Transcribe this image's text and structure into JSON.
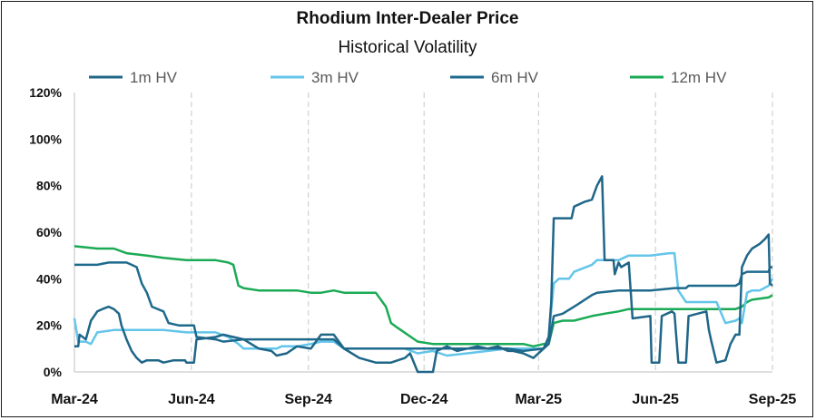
{
  "chart_data": {
    "type": "line",
    "title": "Rhodium Inter-Dealer Price",
    "subtitle": "Historical Volatility",
    "x_ticks": [
      "Mar-24",
      "Jun-24",
      "Sep-24",
      "Dec-24",
      "Mar-25",
      "Jun-25",
      "Sep-25"
    ],
    "x_range": [
      "2024-03-01",
      "2025-09-01"
    ],
    "y_ticks": [
      "0%",
      "20%",
      "40%",
      "60%",
      "80%",
      "100%",
      "120%"
    ],
    "ylim": [
      0,
      120
    ],
    "grid": "dashed vertical at each x tick",
    "legend_position": "top",
    "series": [
      {
        "name": "1m HV",
        "color": "#1F6688",
        "points": [
          [
            "2024-03-01",
            11
          ],
          [
            "2024-03-04",
            11
          ],
          [
            "2024-03-05",
            16
          ],
          [
            "2024-03-10",
            14
          ],
          [
            "2024-03-14",
            22
          ],
          [
            "2024-03-19",
            26
          ],
          [
            "2024-03-23",
            27
          ],
          [
            "2024-03-28",
            28
          ],
          [
            "2024-04-01",
            27
          ],
          [
            "2024-04-05",
            25
          ],
          [
            "2024-04-07",
            20
          ],
          [
            "2024-04-11",
            14
          ],
          [
            "2024-04-15",
            9
          ],
          [
            "2024-04-19",
            6
          ],
          [
            "2024-04-23",
            4
          ],
          [
            "2024-04-27",
            5
          ],
          [
            "2024-05-06",
            5
          ],
          [
            "2024-05-10",
            4
          ],
          [
            "2024-05-18",
            5
          ],
          [
            "2024-05-27",
            5
          ],
          [
            "2024-05-28",
            4
          ],
          [
            "2024-06-03",
            4
          ],
          [
            "2024-06-05",
            14
          ],
          [
            "2024-06-20",
            15
          ],
          [
            "2024-06-26",
            16
          ],
          [
            "2024-07-04",
            15
          ],
          [
            "2024-07-12",
            14
          ],
          [
            "2024-07-24",
            10
          ],
          [
            "2024-08-03",
            9
          ],
          [
            "2024-08-07",
            7
          ],
          [
            "2024-08-15",
            8
          ],
          [
            "2024-08-23",
            11
          ],
          [
            "2024-09-03",
            10
          ],
          [
            "2024-09-11",
            16
          ],
          [
            "2024-09-21",
            16
          ],
          [
            "2024-09-29",
            10
          ],
          [
            "2024-10-11",
            6
          ],
          [
            "2024-10-24",
            4
          ],
          [
            "2024-11-05",
            4
          ],
          [
            "2024-11-16",
            6
          ],
          [
            "2024-11-20",
            8
          ],
          [
            "2024-11-26",
            0
          ],
          [
            "2024-12-08",
            0
          ],
          [
            "2024-12-11",
            9
          ],
          [
            "2024-12-19",
            11
          ],
          [
            "2024-12-27",
            9
          ],
          [
            "2025-01-04",
            10
          ],
          [
            "2025-01-12",
            11
          ],
          [
            "2025-01-20",
            10
          ],
          [
            "2025-01-28",
            11
          ],
          [
            "2025-02-05",
            9
          ],
          [
            "2025-02-09",
            9
          ],
          [
            "2025-02-17",
            8
          ],
          [
            "2025-02-25",
            6
          ],
          [
            "2025-03-05",
            10
          ],
          [
            "2025-03-09",
            15
          ],
          [
            "2025-03-11",
            30
          ],
          [
            "2025-03-13",
            66
          ],
          [
            "2025-03-27",
            66
          ],
          [
            "2025-03-29",
            71
          ],
          [
            "2025-04-06",
            73
          ],
          [
            "2025-04-12",
            74
          ],
          [
            "2025-04-16",
            80
          ],
          [
            "2025-04-20",
            84
          ],
          [
            "2025-04-22",
            48
          ],
          [
            "2025-04-29",
            48
          ],
          [
            "2025-04-30",
            42
          ],
          [
            "2025-05-03",
            47
          ],
          [
            "2025-05-05",
            45
          ],
          [
            "2025-05-11",
            47
          ],
          [
            "2025-05-14",
            23
          ],
          [
            "2025-05-28",
            24
          ],
          [
            "2025-05-29",
            4
          ],
          [
            "2025-06-04",
            4
          ],
          [
            "2025-06-06",
            24
          ],
          [
            "2025-06-14",
            26
          ],
          [
            "2025-06-16",
            25
          ],
          [
            "2025-06-19",
            4
          ],
          [
            "2025-06-25",
            4
          ],
          [
            "2025-06-27",
            24
          ],
          [
            "2025-07-11",
            26
          ],
          [
            "2025-07-13",
            18
          ],
          [
            "2025-07-15",
            13
          ],
          [
            "2025-07-19",
            4
          ],
          [
            "2025-07-26",
            5
          ],
          [
            "2025-07-30",
            12
          ],
          [
            "2025-08-03",
            16
          ],
          [
            "2025-08-06",
            16
          ],
          [
            "2025-08-08",
            45
          ],
          [
            "2025-08-12",
            50
          ],
          [
            "2025-08-16",
            53
          ],
          [
            "2025-08-22",
            55
          ],
          [
            "2025-08-26",
            57
          ],
          [
            "2025-08-29",
            59
          ],
          [
            "2025-08-30",
            38
          ],
          [
            "2025-09-01",
            37
          ]
        ]
      },
      {
        "name": "3m HV",
        "color": "#63C5EA",
        "points": [
          [
            "2024-03-01",
            23
          ],
          [
            "2024-03-04",
            13
          ],
          [
            "2024-03-10",
            13
          ],
          [
            "2024-03-14",
            12
          ],
          [
            "2024-03-19",
            17
          ],
          [
            "2024-04-01",
            18
          ],
          [
            "2024-04-11",
            18
          ],
          [
            "2024-05-10",
            18
          ],
          [
            "2024-05-28",
            17
          ],
          [
            "2024-06-03",
            17
          ],
          [
            "2024-06-20",
            17
          ],
          [
            "2024-06-30",
            15
          ],
          [
            "2024-07-08",
            12
          ],
          [
            "2024-07-12",
            10
          ],
          [
            "2024-07-24",
            10
          ],
          [
            "2024-08-07",
            10
          ],
          [
            "2024-08-11",
            11
          ],
          [
            "2024-08-23",
            11
          ],
          [
            "2024-09-03",
            12
          ],
          [
            "2024-09-11",
            13
          ],
          [
            "2024-09-21",
            13
          ],
          [
            "2024-09-29",
            10
          ],
          [
            "2024-10-11",
            10
          ],
          [
            "2024-10-24",
            10
          ],
          [
            "2024-11-05",
            10
          ],
          [
            "2024-11-16",
            10
          ],
          [
            "2024-11-26",
            8
          ],
          [
            "2024-12-08",
            9
          ],
          [
            "2024-12-19",
            7
          ],
          [
            "2025-01-04",
            8
          ],
          [
            "2025-01-20",
            9
          ],
          [
            "2025-02-05",
            10
          ],
          [
            "2025-02-17",
            10
          ],
          [
            "2025-03-05",
            10
          ],
          [
            "2025-03-09",
            15
          ],
          [
            "2025-03-13",
            38
          ],
          [
            "2025-03-17",
            40
          ],
          [
            "2025-03-25",
            40
          ],
          [
            "2025-03-29",
            43
          ],
          [
            "2025-04-12",
            46
          ],
          [
            "2025-04-16",
            48
          ],
          [
            "2025-05-03",
            48
          ],
          [
            "2025-05-11",
            50
          ],
          [
            "2025-05-28",
            50
          ],
          [
            "2025-06-12",
            51
          ],
          [
            "2025-06-16",
            51
          ],
          [
            "2025-06-19",
            35
          ],
          [
            "2025-06-25",
            30
          ],
          [
            "2025-07-19",
            30
          ],
          [
            "2025-07-26",
            21
          ],
          [
            "2025-08-03",
            22
          ],
          [
            "2025-08-06",
            23
          ],
          [
            "2025-08-08",
            21
          ],
          [
            "2025-08-12",
            34
          ],
          [
            "2025-08-16",
            35
          ],
          [
            "2025-08-22",
            35
          ],
          [
            "2025-08-29",
            37
          ],
          [
            "2025-09-01",
            40
          ]
        ]
      },
      {
        "name": "6m HV",
        "color": "#1E6A8D",
        "points": [
          [
            "2024-03-01",
            46
          ],
          [
            "2024-03-10",
            46
          ],
          [
            "2024-03-19",
            46
          ],
          [
            "2024-03-28",
            47
          ],
          [
            "2024-04-11",
            47
          ],
          [
            "2024-04-15",
            46
          ],
          [
            "2024-04-19",
            45
          ],
          [
            "2024-04-23",
            38
          ],
          [
            "2024-04-27",
            34
          ],
          [
            "2024-05-01",
            28
          ],
          [
            "2024-05-10",
            26
          ],
          [
            "2024-05-14",
            21
          ],
          [
            "2024-05-22",
            20
          ],
          [
            "2024-06-03",
            20
          ],
          [
            "2024-06-05",
            15
          ],
          [
            "2024-06-20",
            14
          ],
          [
            "2024-06-26",
            13
          ],
          [
            "2024-07-12",
            14
          ],
          [
            "2024-07-24",
            14
          ],
          [
            "2024-08-07",
            14
          ],
          [
            "2024-08-23",
            14
          ],
          [
            "2024-09-03",
            14
          ],
          [
            "2024-09-11",
            14
          ],
          [
            "2024-09-21",
            14
          ],
          [
            "2024-09-29",
            10
          ],
          [
            "2024-10-24",
            10
          ],
          [
            "2024-11-05",
            10
          ],
          [
            "2024-11-20",
            10
          ],
          [
            "2024-11-26",
            10
          ],
          [
            "2024-12-08",
            10
          ],
          [
            "2024-12-19",
            10
          ],
          [
            "2025-01-04",
            10
          ],
          [
            "2025-01-20",
            10
          ],
          [
            "2025-02-05",
            10
          ],
          [
            "2025-02-17",
            9
          ],
          [
            "2025-03-05",
            10
          ],
          [
            "2025-03-09",
            12
          ],
          [
            "2025-03-13",
            24
          ],
          [
            "2025-03-20",
            25
          ],
          [
            "2025-03-29",
            28
          ],
          [
            "2025-04-12",
            33
          ],
          [
            "2025-04-16",
            34
          ],
          [
            "2025-05-03",
            35
          ],
          [
            "2025-05-11",
            35
          ],
          [
            "2025-05-28",
            35
          ],
          [
            "2025-06-16",
            36
          ],
          [
            "2025-06-25",
            36
          ],
          [
            "2025-06-27",
            37
          ],
          [
            "2025-07-19",
            37
          ],
          [
            "2025-08-03",
            37
          ],
          [
            "2025-08-06",
            38
          ],
          [
            "2025-08-08",
            42
          ],
          [
            "2025-08-12",
            43
          ],
          [
            "2025-08-29",
            43
          ],
          [
            "2025-08-30",
            45
          ],
          [
            "2025-09-01",
            45
          ]
        ]
      },
      {
        "name": "12m HV",
        "color": "#1AAA55",
        "points": [
          [
            "2024-03-01",
            54
          ],
          [
            "2024-03-19",
            53
          ],
          [
            "2024-04-01",
            53
          ],
          [
            "2024-04-11",
            51
          ],
          [
            "2024-04-27",
            50
          ],
          [
            "2024-05-10",
            49
          ],
          [
            "2024-05-28",
            48
          ],
          [
            "2024-06-20",
            48
          ],
          [
            "2024-06-30",
            47
          ],
          [
            "2024-07-04",
            46
          ],
          [
            "2024-07-08",
            37
          ],
          [
            "2024-07-12",
            36
          ],
          [
            "2024-07-24",
            35
          ],
          [
            "2024-08-07",
            35
          ],
          [
            "2024-08-23",
            35
          ],
          [
            "2024-09-03",
            34
          ],
          [
            "2024-09-11",
            34
          ],
          [
            "2024-09-21",
            35
          ],
          [
            "2024-09-29",
            34
          ],
          [
            "2024-10-11",
            34
          ],
          [
            "2024-10-24",
            34
          ],
          [
            "2024-11-01",
            28
          ],
          [
            "2024-11-05",
            21
          ],
          [
            "2024-11-10",
            19
          ],
          [
            "2024-11-26",
            13
          ],
          [
            "2024-12-08",
            12
          ],
          [
            "2024-12-19",
            12
          ],
          [
            "2025-01-04",
            12
          ],
          [
            "2025-01-20",
            12
          ],
          [
            "2025-02-05",
            12
          ],
          [
            "2025-02-17",
            12
          ],
          [
            "2025-02-25",
            11
          ],
          [
            "2025-03-05",
            12
          ],
          [
            "2025-03-09",
            12
          ],
          [
            "2025-03-13",
            21
          ],
          [
            "2025-03-20",
            22
          ],
          [
            "2025-03-29",
            22
          ],
          [
            "2025-04-12",
            24
          ],
          [
            "2025-04-22",
            25
          ],
          [
            "2025-05-03",
            26
          ],
          [
            "2025-05-11",
            27
          ],
          [
            "2025-05-28",
            27
          ],
          [
            "2025-06-16",
            27
          ],
          [
            "2025-06-27",
            27
          ],
          [
            "2025-07-11",
            27
          ],
          [
            "2025-07-19",
            27
          ],
          [
            "2025-08-03",
            27
          ],
          [
            "2025-08-08",
            28
          ],
          [
            "2025-08-12",
            30
          ],
          [
            "2025-08-16",
            31
          ],
          [
            "2025-08-29",
            32
          ],
          [
            "2025-09-01",
            33
          ]
        ]
      }
    ]
  }
}
